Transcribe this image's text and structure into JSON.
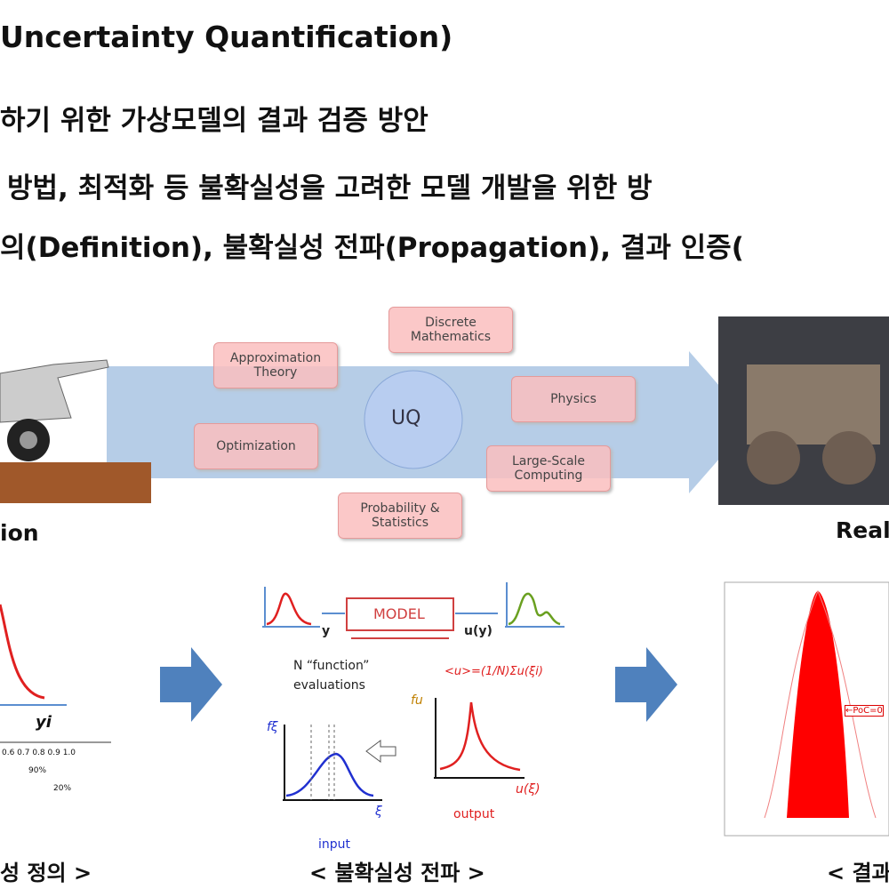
{
  "header": {
    "title": "Uncertainty Quantification)"
  },
  "bullets": [
    "하기 위한 가상모델의 결과 검증 방안",
    "방법, 최적화 등 불확실성을 고려한 모델 개발을 위한 방",
    "의(Definition), 불확실성 전파(Propagation), 결과 인증("
  ],
  "diagram": {
    "center": "UQ",
    "nodes": [
      "Discrete Mathematics",
      "Approximation Theory",
      "Physics",
      "Optimization",
      "Large-Scale Computing",
      "Probability & Statistics"
    ],
    "left_label": "ion",
    "right_label": "Real"
  },
  "panels": {
    "left": {
      "axis_label": "yi",
      "ticks": "0.6  0.7  0.8  0.9  1.0",
      "pct1": "90%",
      "pct2": "20%"
    },
    "middle": {
      "model": "MODEL",
      "input_var": "y",
      "output_var": "u(y)",
      "evaluations": "N “function” evaluations",
      "formula": "<u>=(1/N)Σu(ξi)",
      "f_xi": "fξ",
      "f_u": "fu",
      "xi": "ξ",
      "u_xi": "u(ξ)",
      "output": "output",
      "input": "input"
    },
    "right": {
      "poc": "←PoC=0"
    }
  },
  "captions": [
    "성 정의 >",
    "< 불확실성 전파 >",
    "< 결과"
  ]
}
